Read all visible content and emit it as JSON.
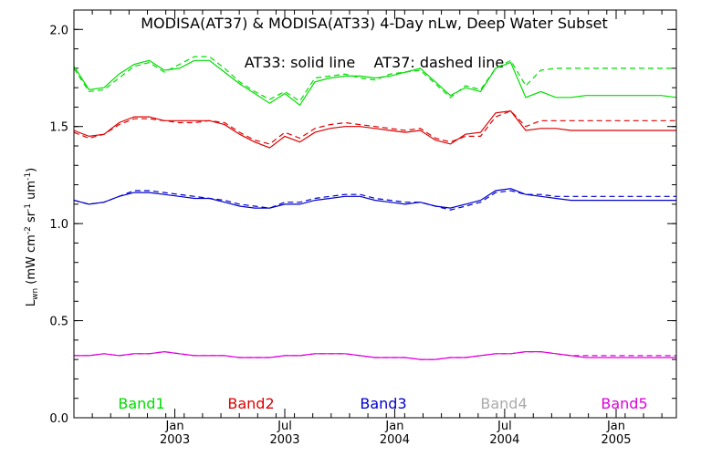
{
  "chart_data": {
    "type": "line",
    "title": "MODISA(AT37) & MODISA(AT33) 4-Day nLw, Deep Water Subset",
    "annotation": "AT33: solid line    AT37: dashed line",
    "ylabel": "L_wn (mW cm^-2 sr^-1 um^-1)",
    "ylabel_main": "L",
    "ylabel_sub": "wn",
    "ylabel_rest": " (mW cm",
    "ylabel_exp1": "-2",
    "ylabel_sr": " sr",
    "ylabel_exp2": "-1",
    "ylabel_um": " um",
    "ylabel_exp3": "-1",
    "ylabel_close": ")",
    "xlim": [
      0.0,
      40.0
    ],
    "ylim": [
      0.0,
      2.1
    ],
    "yticks": [
      0.0,
      0.5,
      1.0,
      1.5,
      2.0
    ],
    "ytick_labels": [
      "0.0",
      "0.5",
      "1.0",
      "1.5",
      "2.0"
    ],
    "xticks": [
      {
        "x": 6.7,
        "month": "Jan",
        "year": "2003"
      },
      {
        "x": 14.0,
        "month": "Jul",
        "year": "2003"
      },
      {
        "x": 21.3,
        "month": "Jan",
        "year": "2004"
      },
      {
        "x": 28.6,
        "month": "Jul",
        "year": "2004"
      },
      {
        "x": 36.0,
        "month": "Jan",
        "year": "2005"
      }
    ],
    "legend_placement": "bottom",
    "x": [
      0,
      1,
      2,
      3,
      4,
      5,
      6,
      7,
      8,
      9,
      10,
      11,
      12,
      13,
      14,
      15,
      16,
      17,
      18,
      19,
      20,
      21,
      22,
      23,
      24,
      25,
      26,
      27,
      28,
      29,
      30,
      31,
      32,
      33,
      34,
      35,
      36,
      37,
      38,
      39,
      40
    ],
    "series": [
      {
        "name": "Band1",
        "color": "#00dd00",
        "solid": [
          1.81,
          1.69,
          1.7,
          1.77,
          1.82,
          1.84,
          1.79,
          1.8,
          1.84,
          1.84,
          1.78,
          1.72,
          1.67,
          1.62,
          1.67,
          1.61,
          1.73,
          1.75,
          1.76,
          1.76,
          1.75,
          1.76,
          1.78,
          1.8,
          1.73,
          1.66,
          1.7,
          1.68,
          1.8,
          1.83,
          1.65,
          1.68,
          1.65,
          1.65,
          1.66,
          1.66,
          1.66,
          1.66,
          1.66,
          1.66,
          1.65
        ],
        "dashed": [
          1.8,
          1.68,
          1.69,
          1.75,
          1.81,
          1.83,
          1.78,
          1.82,
          1.86,
          1.86,
          1.8,
          1.73,
          1.68,
          1.64,
          1.68,
          1.63,
          1.75,
          1.76,
          1.77,
          1.75,
          1.74,
          1.77,
          1.78,
          1.79,
          1.72,
          1.65,
          1.71,
          1.69,
          1.8,
          1.84,
          1.71,
          1.79,
          1.8,
          1.8,
          1.8,
          1.8,
          1.8,
          1.8,
          1.8,
          1.8,
          1.8
        ]
      },
      {
        "name": "Band2",
        "color": "#dd0000",
        "solid": [
          1.48,
          1.45,
          1.46,
          1.52,
          1.55,
          1.55,
          1.53,
          1.53,
          1.53,
          1.53,
          1.51,
          1.46,
          1.42,
          1.39,
          1.45,
          1.42,
          1.47,
          1.49,
          1.5,
          1.5,
          1.49,
          1.48,
          1.47,
          1.48,
          1.43,
          1.41,
          1.46,
          1.47,
          1.57,
          1.58,
          1.48,
          1.49,
          1.49,
          1.48,
          1.48,
          1.48,
          1.48,
          1.48,
          1.48,
          1.48,
          1.48
        ],
        "dashed": [
          1.47,
          1.44,
          1.46,
          1.51,
          1.54,
          1.54,
          1.53,
          1.52,
          1.52,
          1.53,
          1.52,
          1.47,
          1.43,
          1.41,
          1.47,
          1.44,
          1.49,
          1.51,
          1.52,
          1.51,
          1.5,
          1.49,
          1.48,
          1.49,
          1.44,
          1.42,
          1.45,
          1.45,
          1.55,
          1.58,
          1.5,
          1.53,
          1.53,
          1.53,
          1.53,
          1.53,
          1.53,
          1.53,
          1.53,
          1.53,
          1.53
        ]
      },
      {
        "name": "Band3",
        "color": "#0000cc",
        "solid": [
          1.12,
          1.1,
          1.11,
          1.14,
          1.16,
          1.16,
          1.15,
          1.14,
          1.13,
          1.13,
          1.11,
          1.09,
          1.08,
          1.08,
          1.1,
          1.1,
          1.12,
          1.13,
          1.14,
          1.14,
          1.12,
          1.11,
          1.1,
          1.11,
          1.09,
          1.08,
          1.1,
          1.12,
          1.17,
          1.18,
          1.15,
          1.14,
          1.13,
          1.12,
          1.12,
          1.12,
          1.12,
          1.12,
          1.12,
          1.12,
          1.12
        ],
        "dashed": [
          1.12,
          1.1,
          1.11,
          1.14,
          1.17,
          1.17,
          1.16,
          1.15,
          1.14,
          1.13,
          1.12,
          1.1,
          1.09,
          1.08,
          1.11,
          1.11,
          1.13,
          1.14,
          1.15,
          1.15,
          1.13,
          1.12,
          1.11,
          1.11,
          1.09,
          1.07,
          1.09,
          1.11,
          1.16,
          1.17,
          1.15,
          1.15,
          1.14,
          1.14,
          1.14,
          1.14,
          1.14,
          1.14,
          1.14,
          1.14,
          1.14
        ]
      },
      {
        "name": "Band4",
        "color": "#aaaaaa",
        "solid": [],
        "dashed": []
      },
      {
        "name": "Band5",
        "color": "#dd00dd",
        "solid": [
          0.32,
          0.32,
          0.33,
          0.32,
          0.33,
          0.33,
          0.34,
          0.33,
          0.32,
          0.32,
          0.32,
          0.31,
          0.31,
          0.31,
          0.32,
          0.32,
          0.33,
          0.33,
          0.33,
          0.32,
          0.31,
          0.31,
          0.31,
          0.3,
          0.3,
          0.31,
          0.31,
          0.32,
          0.33,
          0.33,
          0.34,
          0.34,
          0.33,
          0.32,
          0.31,
          0.31,
          0.31,
          0.31,
          0.31,
          0.31,
          0.31
        ],
        "dashed": [
          0.32,
          0.32,
          0.33,
          0.32,
          0.33,
          0.33,
          0.34,
          0.33,
          0.32,
          0.32,
          0.32,
          0.31,
          0.31,
          0.31,
          0.32,
          0.32,
          0.33,
          0.33,
          0.33,
          0.32,
          0.31,
          0.31,
          0.31,
          0.3,
          0.3,
          0.31,
          0.31,
          0.32,
          0.33,
          0.33,
          0.34,
          0.34,
          0.33,
          0.32,
          0.32,
          0.32,
          0.32,
          0.32,
          0.32,
          0.32,
          0.32
        ]
      }
    ]
  }
}
